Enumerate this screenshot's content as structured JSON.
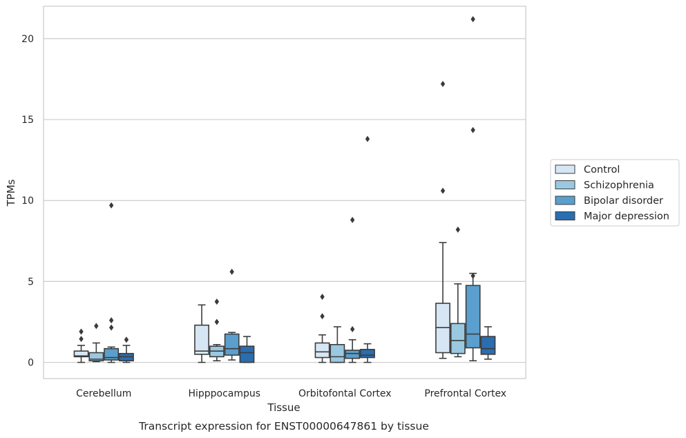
{
  "chart_data": {
    "type": "box",
    "caption": "Transcript expression for ENST00000647861 by tissue",
    "xlabel": "Tissue",
    "ylabel": "TPMs",
    "ylim": [
      -1,
      22
    ],
    "yticks": [
      0,
      5,
      10,
      15,
      20
    ],
    "grid": "horizontal",
    "legend_position": "right",
    "categories": [
      "Cerebellum",
      "Hipppocampus",
      "Orbitofontal Cortex",
      "Prefrontal Cortex"
    ],
    "series": [
      {
        "name": "Control",
        "color": "#d6e6f4",
        "boxes": [
          {
            "whislo": 0.0,
            "q1": 0.35,
            "med": 0.4,
            "q3": 0.7,
            "whishi": 1.05,
            "fliers": [
              1.45,
              1.9
            ]
          },
          {
            "whislo": 0.0,
            "q1": 0.5,
            "med": 0.7,
            "q3": 2.3,
            "whishi": 3.55,
            "fliers": []
          },
          {
            "whislo": 0.0,
            "q1": 0.3,
            "med": 0.65,
            "q3": 1.2,
            "whishi": 1.7,
            "fliers": [
              2.85,
              4.05
            ]
          },
          {
            "whislo": 0.25,
            "q1": 0.6,
            "med": 2.15,
            "q3": 3.65,
            "whishi": 7.4,
            "fliers": [
              10.6,
              17.2
            ]
          }
        ]
      },
      {
        "name": "Schizophrenia",
        "color": "#9ac8e0",
        "boxes": [
          {
            "whislo": 0.05,
            "q1": 0.1,
            "med": 0.2,
            "q3": 0.6,
            "whishi": 1.2,
            "fliers": [
              2.25
            ]
          },
          {
            "whislo": 0.1,
            "q1": 0.35,
            "med": 0.7,
            "q3": 1.0,
            "whishi": 1.1,
            "fliers": [
              2.5,
              3.75
            ]
          },
          {
            "whislo": 0.0,
            "q1": 0.0,
            "med": 0.35,
            "q3": 1.1,
            "whishi": 2.2,
            "fliers": []
          },
          {
            "whislo": 0.35,
            "q1": 0.55,
            "med": 1.35,
            "q3": 2.4,
            "whishi": 4.85,
            "fliers": [
              8.2
            ]
          }
        ]
      },
      {
        "name": "Bipolar disorder",
        "color": "#5a9fcd",
        "boxes": [
          {
            "whislo": 0.0,
            "q1": 0.15,
            "med": 0.3,
            "q3": 0.85,
            "whishi": 0.95,
            "fliers": [
              2.15,
              2.6,
              9.7
            ]
          },
          {
            "whislo": 0.15,
            "q1": 0.45,
            "med": 0.85,
            "q3": 1.75,
            "whishi": 1.85,
            "fliers": [
              5.6
            ]
          },
          {
            "whislo": 0.0,
            "q1": 0.25,
            "med": 0.55,
            "q3": 0.75,
            "whishi": 1.4,
            "fliers": [
              2.05,
              8.8
            ]
          },
          {
            "whislo": 0.1,
            "q1": 0.9,
            "med": 1.75,
            "q3": 4.75,
            "whishi": 5.5,
            "fliers": [
              5.35,
              14.35,
              21.2
            ]
          }
        ]
      },
      {
        "name": "Major depression",
        "color": "#2a6db0",
        "boxes": [
          {
            "whislo": 0.0,
            "q1": 0.1,
            "med": 0.35,
            "q3": 0.55,
            "whishi": 1.05,
            "fliers": [
              1.4
            ]
          },
          {
            "whislo": 0.0,
            "q1": 0.0,
            "med": 0.6,
            "q3": 1.0,
            "whishi": 1.6,
            "fliers": []
          },
          {
            "whislo": 0.0,
            "q1": 0.3,
            "med": 0.45,
            "q3": 0.8,
            "whishi": 1.15,
            "fliers": [
              13.8
            ]
          },
          {
            "whislo": 0.2,
            "q1": 0.5,
            "med": 0.85,
            "q3": 1.6,
            "whishi": 2.2,
            "fliers": []
          }
        ]
      }
    ]
  }
}
